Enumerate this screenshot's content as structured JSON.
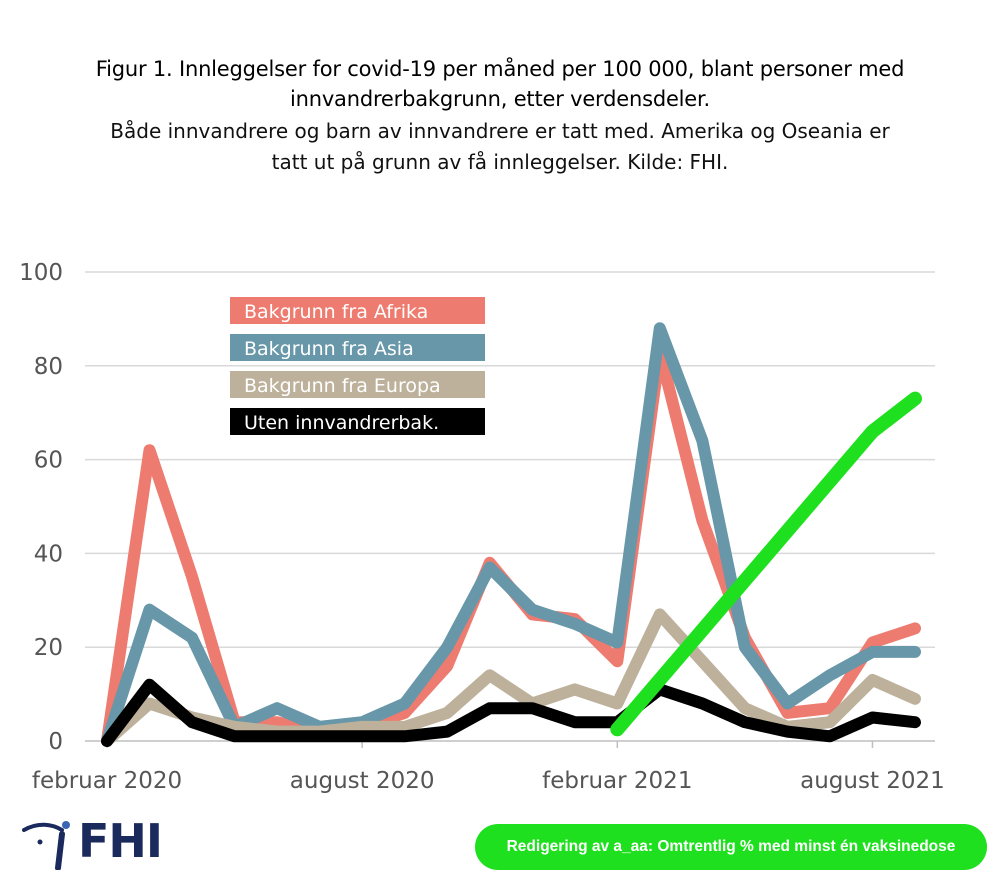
{
  "title": "Figur 1. Innleggelser for covid-19 per måned per 100 000, blant personer med innvandrerbakgrunn, etter verdensdeler.",
  "subtitle": "Både innvandrere og barn av innvandrere er tatt med. Amerika og Oseania er tatt ut på grunn av få innleggelser. Kilde: FHI.",
  "logo": {
    "text": "FHI",
    "icon": "fhi-logo-icon"
  },
  "edit_note": "Redigering av a_aa: Omtrentlig % med minst én vaksinedose",
  "chart_data": {
    "type": "line",
    "categories": [
      "2020-02",
      "2020-03",
      "2020-04",
      "2020-05",
      "2020-06",
      "2020-07",
      "2020-08",
      "2020-09",
      "2020-10",
      "2020-11",
      "2020-12",
      "2021-01",
      "2021-02",
      "2021-03",
      "2021-04",
      "2021-05",
      "2021-06",
      "2021-07",
      "2021-08",
      "2021-09"
    ],
    "x_tick_labels": [
      {
        "category": "2020-02",
        "label": "februar 2020"
      },
      {
        "category": "2020-08",
        "label": "august 2020"
      },
      {
        "category": "2021-02",
        "label": "februar 2021"
      },
      {
        "category": "2021-08",
        "label": "august 2021"
      }
    ],
    "ylim": [
      0,
      100
    ],
    "yticks": [
      0,
      20,
      40,
      60,
      80,
      100
    ],
    "grid": true,
    "legend_position": "top-left",
    "series": [
      {
        "name": "Bakgrunn fra Afrika",
        "color": "#ee7b6f",
        "values": [
          0,
          62,
          35,
          4,
          4,
          2,
          3,
          6,
          16,
          38,
          27,
          26,
          17,
          83,
          47,
          22,
          6,
          7,
          21,
          24
        ]
      },
      {
        "name": "Bakgrunn fra Asia",
        "color": "#6797a8",
        "values": [
          0,
          28,
          22,
          3,
          7,
          3,
          4,
          8,
          20,
          37,
          28,
          25,
          21,
          88,
          64,
          20,
          8,
          14,
          19,
          19
        ]
      },
      {
        "name": "Bakgrunn fra Europa",
        "color": "#bdb19b",
        "values": [
          0,
          8,
          5,
          3,
          2,
          2,
          3,
          3,
          6,
          14,
          8,
          11,
          8,
          27,
          17,
          7,
          3,
          4,
          13,
          9
        ]
      },
      {
        "name": "Uten innvandrerbak.",
        "color": "#000000",
        "values": [
          0,
          12,
          4,
          1,
          1,
          1,
          1,
          1,
          2,
          7,
          7,
          4,
          4,
          11,
          8,
          4,
          2,
          1,
          5,
          4
        ]
      }
    ],
    "overlay_series": {
      "color": "#1fe01f",
      "x": [
        "2021-02",
        "2021-08",
        "2021-09"
      ],
      "values": [
        2.5,
        66,
        73
      ]
    }
  }
}
